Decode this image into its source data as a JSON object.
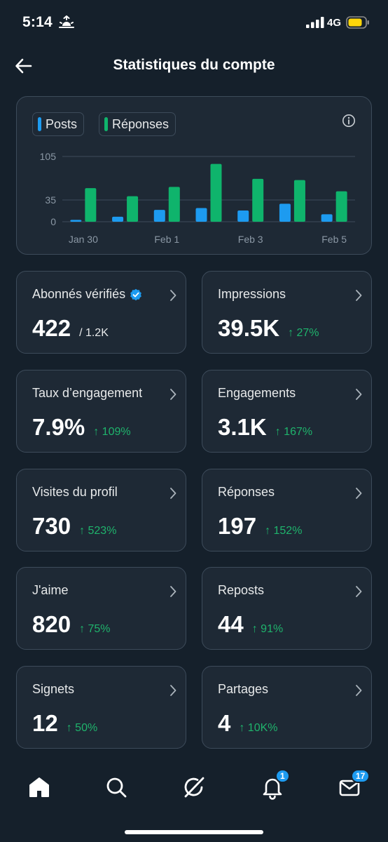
{
  "status_bar": {
    "time": "5:14",
    "network": "4G"
  },
  "header": {
    "title": "Statistiques du compte"
  },
  "chart": {
    "legend": [
      {
        "label": "Posts",
        "color": "#1d9bf0"
      },
      {
        "label": "Réponses",
        "color": "#0fb46c"
      }
    ]
  },
  "chart_data": {
    "type": "bar",
    "categories": [
      "Jan 30",
      "Jan 31",
      "Feb 1",
      "Feb 2",
      "Feb 3",
      "Feb 4",
      "Feb 5"
    ],
    "xticks": [
      "Jan 30",
      "Feb 1",
      "Feb 3",
      "Feb 5"
    ],
    "yticks": [
      0,
      35,
      105
    ],
    "ylim": [
      0,
      105
    ],
    "series": [
      {
        "name": "Posts",
        "color": "#1d9bf0",
        "values": [
          3,
          8,
          19,
          22,
          18,
          29,
          12
        ]
      },
      {
        "name": "Réponses",
        "color": "#0fb46c",
        "values": [
          54,
          41,
          56,
          93,
          69,
          67,
          49
        ]
      }
    ]
  },
  "stats": [
    {
      "label": "Abonnés vérifiés",
      "value": "422",
      "sub": "/ 1.2K",
      "verified": true
    },
    {
      "label": "Impressions",
      "value": "39.5K",
      "delta": "↑ 27%"
    },
    {
      "label": "Taux d’engagement",
      "value": "7.9%",
      "delta": "↑ 109%"
    },
    {
      "label": "Engagements",
      "value": "3.1K",
      "delta": "↑ 167%"
    },
    {
      "label": "Visites du profil",
      "value": "730",
      "delta": "↑ 523%"
    },
    {
      "label": "Réponses",
      "value": "197",
      "delta": "↑ 152%"
    },
    {
      "label": "J'aime",
      "value": "820",
      "delta": "↑ 75%"
    },
    {
      "label": "Reposts",
      "value": "44",
      "delta": "↑ 91%"
    },
    {
      "label": "Signets",
      "value": "12",
      "delta": "↑ 50%"
    },
    {
      "label": "Partages",
      "value": "4",
      "delta": "↑ 10K%"
    }
  ],
  "tabbar": {
    "notifications_badge": "1",
    "messages_badge": "17"
  }
}
